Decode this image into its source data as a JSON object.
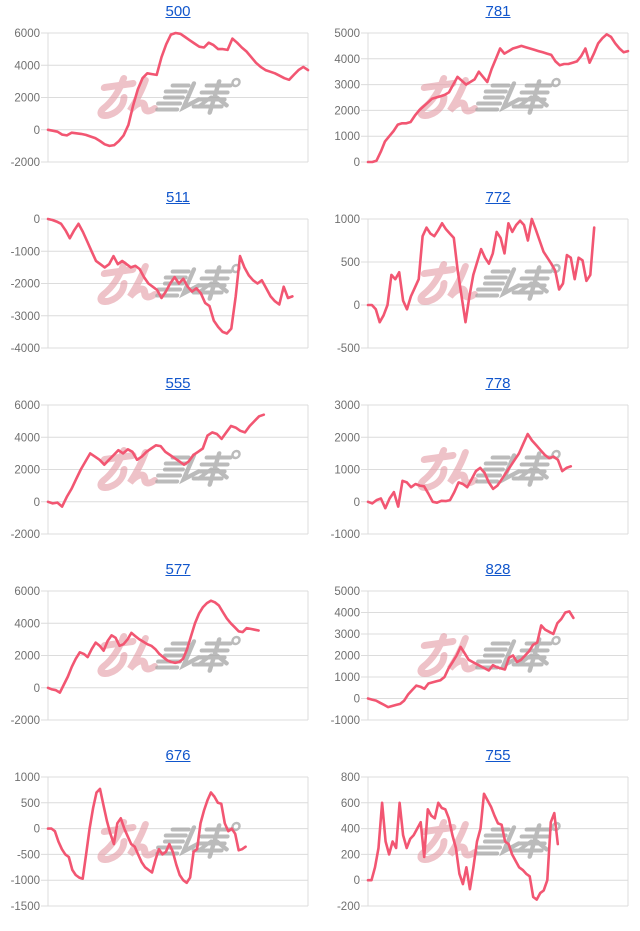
{
  "page": {
    "background": "#ffffff"
  },
  "colors": {
    "line": "#f25672",
    "grid": "#dcdcdc",
    "axis_label": "#707070",
    "title_link": "#1156cc",
    "watermark_pink": "#e39aa4",
    "watermark_gray": "#a5a5a5"
  },
  "watermark": {
    "text": "みんレポ"
  },
  "chart_data": [
    {
      "title": "500",
      "type": "line",
      "ylim": [
        -2000,
        6000
      ],
      "yticks": [
        6000,
        4000,
        2000,
        0,
        -2000
      ],
      "grid": true,
      "x_tick_labels": false,
      "legend": false,
      "span": 1.0,
      "values": [
        0,
        -60,
        -120,
        -300,
        -350,
        -180,
        -220,
        -260,
        -320,
        -420,
        -520,
        -700,
        -900,
        -1000,
        -950,
        -700,
        -350,
        300,
        1500,
        2500,
        3200,
        3500,
        3450,
        3400,
        4500,
        5300,
        5900,
        6000,
        5950,
        5750,
        5550,
        5350,
        5150,
        5100,
        5400,
        5250,
        5000,
        5000,
        4950,
        5650,
        5400,
        5100,
        4850,
        4500,
        4150,
        3900,
        3700,
        3600,
        3500,
        3350,
        3200,
        3100,
        3400,
        3700,
        3900,
        3700
      ]
    },
    {
      "title": "781",
      "type": "line",
      "ylim": [
        0,
        5000
      ],
      "yticks": [
        5000,
        4000,
        3000,
        2000,
        1000,
        0
      ],
      "grid": true,
      "x_tick_labels": false,
      "legend": false,
      "span": 1.0,
      "values": [
        0,
        0,
        50,
        400,
        800,
        1000,
        1200,
        1450,
        1500,
        1500,
        1550,
        1800,
        2000,
        2150,
        2300,
        2450,
        2500,
        2550,
        2600,
        2700,
        3000,
        3300,
        3150,
        3000,
        3100,
        3200,
        3500,
        3300,
        3100,
        3600,
        4000,
        4400,
        4200,
        4300,
        4400,
        4450,
        4500,
        4450,
        4400,
        4350,
        4300,
        4250,
        4200,
        4150,
        3900,
        3750,
        3800,
        3800,
        3850,
        3900,
        4100,
        4400,
        3850,
        4200,
        4600,
        4800,
        4950,
        4850,
        4600,
        4400,
        4250,
        4300
      ]
    },
    {
      "title": "511",
      "type": "line",
      "ylim": [
        -4000,
        0
      ],
      "yticks": [
        0,
        -1000,
        -2000,
        -3000,
        -4000
      ],
      "grid": true,
      "x_tick_labels": false,
      "legend": false,
      "span": 0.94,
      "values": [
        0,
        -30,
        -80,
        -150,
        -350,
        -600,
        -350,
        -150,
        -400,
        -700,
        -1000,
        -1300,
        -1400,
        -1500,
        -1400,
        -1150,
        -1400,
        -1300,
        -1400,
        -1500,
        -1450,
        -1550,
        -1800,
        -2000,
        -2100,
        -2200,
        -2450,
        -2250,
        -2000,
        -1800,
        -2000,
        -1850,
        -2100,
        -2250,
        -2150,
        -2300,
        -2600,
        -2700,
        -3150,
        -3350,
        -3500,
        -3550,
        -3400,
        -2400,
        -1150,
        -1500,
        -1750,
        -1900,
        -2000,
        -1900,
        -2150,
        -2400,
        -2550,
        -2650,
        -2100,
        -2450,
        -2400
      ]
    },
    {
      "title": "772",
      "type": "line",
      "ylim": [
        -500,
        1000
      ],
      "yticks": [
        1000,
        500,
        0,
        -500
      ],
      "grid": true,
      "x_tick_labels": false,
      "legend": false,
      "span": 0.87,
      "values": [
        0,
        0,
        -50,
        -200,
        -120,
        0,
        350,
        300,
        380,
        50,
        -50,
        100,
        200,
        300,
        800,
        900,
        830,
        800,
        870,
        950,
        880,
        830,
        780,
        400,
        100,
        -200,
        100,
        350,
        500,
        650,
        550,
        480,
        600,
        850,
        780,
        600,
        950,
        850,
        930,
        980,
        930,
        750,
        1000,
        880,
        750,
        620,
        550,
        480,
        400,
        180,
        250,
        580,
        550,
        300,
        550,
        520,
        280,
        350,
        900
      ]
    },
    {
      "title": "555",
      "type": "line",
      "ylim": [
        -2000,
        6000
      ],
      "yticks": [
        6000,
        4000,
        2000,
        0,
        -2000
      ],
      "grid": true,
      "x_tick_labels": false,
      "legend": false,
      "span": 0.83,
      "values": [
        0,
        -100,
        -50,
        -300,
        300,
        800,
        1400,
        2000,
        2500,
        3000,
        2800,
        2600,
        2300,
        2600,
        2900,
        3200,
        3000,
        3250,
        3100,
        2600,
        2800,
        3100,
        3300,
        3500,
        3450,
        3100,
        2900,
        2700,
        2500,
        2300,
        2500,
        2900,
        3100,
        3300,
        4100,
        4300,
        4200,
        3900,
        4300,
        4700,
        4600,
        4400,
        4300,
        4700,
        5000,
        5300,
        5400
      ]
    },
    {
      "title": "778",
      "type": "line",
      "ylim": [
        -1000,
        3000
      ],
      "yticks": [
        3000,
        2000,
        1000,
        0,
        -1000
      ],
      "grid": true,
      "x_tick_labels": false,
      "legend": false,
      "span": 0.78,
      "values": [
        0,
        -50,
        50,
        100,
        -200,
        100,
        300,
        -150,
        650,
        600,
        450,
        550,
        500,
        480,
        250,
        0,
        -30,
        30,
        20,
        50,
        300,
        600,
        550,
        450,
        700,
        950,
        1050,
        900,
        600,
        400,
        500,
        700,
        900,
        1100,
        1300,
        1500,
        1800,
        2100,
        1900,
        1750,
        1600,
        1450,
        1350,
        1400,
        1300,
        950,
        1050,
        1100
      ]
    },
    {
      "title": "577",
      "type": "line",
      "ylim": [
        -2000,
        6000
      ],
      "yticks": [
        6000,
        4000,
        2000,
        0,
        -2000
      ],
      "grid": true,
      "x_tick_labels": false,
      "legend": false,
      "span": 0.81,
      "values": [
        0,
        -100,
        -150,
        -300,
        200,
        700,
        1300,
        1800,
        2200,
        2100,
        1900,
        2400,
        2800,
        2600,
        2300,
        2900,
        3250,
        3100,
        2600,
        2700,
        3000,
        3400,
        3200,
        3000,
        2850,
        2700,
        2600,
        2400,
        2100,
        1900,
        1700,
        1600,
        1550,
        1600,
        1800,
        2400,
        3200,
        4000,
        4600,
        5000,
        5250,
        5400,
        5300,
        5100,
        4700,
        4300,
        4000,
        3750,
        3500,
        3450,
        3700,
        3650,
        3600,
        3550
      ]
    },
    {
      "title": "828",
      "type": "line",
      "ylim": [
        -1000,
        5000
      ],
      "yticks": [
        5000,
        4000,
        3000,
        2000,
        1000,
        0,
        -1000
      ],
      "grid": true,
      "x_tick_labels": false,
      "legend": false,
      "span": 0.79,
      "values": [
        0,
        -50,
        -100,
        -200,
        -300,
        -400,
        -350,
        -300,
        -250,
        -100,
        200,
        400,
        600,
        550,
        450,
        700,
        750,
        800,
        850,
        1000,
        1400,
        1700,
        2000,
        2400,
        2100,
        1800,
        1700,
        1600,
        1500,
        1400,
        1300,
        1550,
        1450,
        1400,
        1350,
        1900,
        2000,
        1700,
        1800,
        2000,
        2200,
        2500,
        2600,
        3400,
        3200,
        3100,
        3000,
        3500,
        3700,
        4000,
        4050,
        3750
      ]
    },
    {
      "title": "676",
      "type": "line",
      "ylim": [
        -1500,
        1000
      ],
      "yticks": [
        1000,
        500,
        0,
        -500,
        -1000,
        -1500
      ],
      "grid": true,
      "x_tick_labels": false,
      "legend": false,
      "span": 0.76,
      "values": [
        0,
        0,
        -50,
        -250,
        -400,
        -500,
        -550,
        -800,
        -900,
        -950,
        -970,
        -500,
        0,
        400,
        700,
        770,
        450,
        150,
        -100,
        -300,
        100,
        200,
        0,
        -150,
        -300,
        -350,
        -500,
        -650,
        -750,
        -800,
        -850,
        -600,
        -400,
        -500,
        -450,
        -300,
        -450,
        -700,
        -900,
        -1000,
        -1050,
        -950,
        -450,
        -400,
        100,
        350,
        550,
        700,
        620,
        500,
        480,
        100,
        -50,
        0,
        -100,
        -420,
        -400,
        -350
      ]
    },
    {
      "title": "755",
      "type": "line",
      "ylim": [
        -200,
        800
      ],
      "yticks": [
        800,
        600,
        400,
        200,
        0,
        -200
      ],
      "grid": true,
      "x_tick_labels": false,
      "legend": false,
      "span": 0.73,
      "values": [
        0,
        0,
        100,
        250,
        600,
        300,
        200,
        300,
        250,
        600,
        350,
        250,
        320,
        350,
        400,
        450,
        180,
        550,
        500,
        480,
        600,
        560,
        550,
        480,
        350,
        250,
        50,
        -30,
        100,
        -70,
        100,
        300,
        400,
        670,
        620,
        570,
        500,
        440,
        430,
        300,
        280,
        200,
        150,
        100,
        80,
        50,
        30,
        -130,
        -150,
        -100,
        -80,
        0,
        450,
        520,
        280
      ]
    }
  ]
}
